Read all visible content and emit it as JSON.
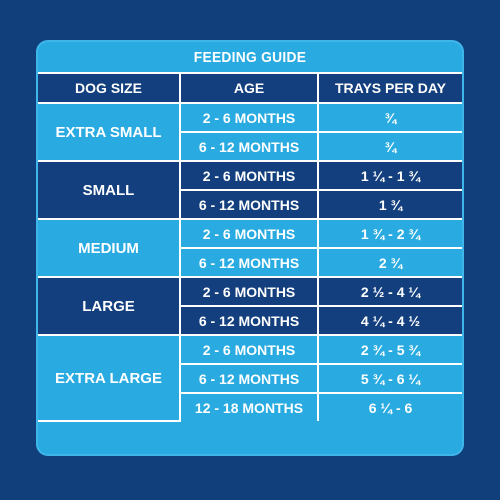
{
  "title": "FEEDING GUIDE",
  "headers": {
    "size": "DOG SIZE",
    "age": "AGE",
    "trays": "TRAYS PER DAY"
  },
  "groups": [
    {
      "size": "EXTRA SMALL",
      "rows": [
        {
          "age": "2 - 6 MONTHS",
          "trays": "¾"
        },
        {
          "age": "6 - 12 MONTHS",
          "trays": "¾"
        }
      ]
    },
    {
      "size": "SMALL",
      "rows": [
        {
          "age": "2 - 6 MONTHS",
          "trays": "1 ¼ - 1 ¾"
        },
        {
          "age": "6 - 12 MONTHS",
          "trays": "1 ¾"
        }
      ]
    },
    {
      "size": "MEDIUM",
      "rows": [
        {
          "age": "2 - 6 MONTHS",
          "trays": "1 ¾ - 2 ¾"
        },
        {
          "age": "6 - 12 MONTHS",
          "trays": "2 ¾"
        }
      ]
    },
    {
      "size": "LARGE",
      "rows": [
        {
          "age": "2 - 6 MONTHS",
          "trays": "2 ½ - 4 ¼"
        },
        {
          "age": "6 - 12 MONTHS",
          "trays": "4 ¼ - 4 ½"
        }
      ]
    },
    {
      "size": "EXTRA LARGE",
      "rows": [
        {
          "age": "2 - 6 MONTHS",
          "trays": "2 ¾ - 5 ¾"
        },
        {
          "age": "6 - 12 MONTHS",
          "trays": "5 ¾ - 6 ¼"
        },
        {
          "age": "12 - 18 MONTHS",
          "trays": "6 ¼ - 6"
        }
      ]
    }
  ],
  "colors": {
    "background": "#113f7c",
    "light": "#29abe2",
    "dark": "#133f7e",
    "text": "#ffffff"
  }
}
